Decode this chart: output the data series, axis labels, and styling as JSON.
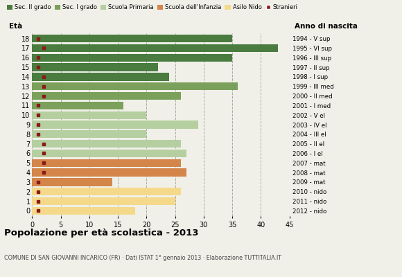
{
  "ages": [
    18,
    17,
    16,
    15,
    14,
    13,
    12,
    11,
    10,
    9,
    8,
    7,
    6,
    5,
    4,
    3,
    2,
    1,
    0
  ],
  "values": [
    35,
    43,
    35,
    22,
    24,
    36,
    26,
    16,
    20,
    29,
    20,
    26,
    27,
    26,
    27,
    14,
    26,
    25,
    18
  ],
  "anno_nascita": [
    "1994 - V sup",
    "1995 - VI sup",
    "1996 - III sup",
    "1997 - II sup",
    "1998 - I sup",
    "1999 - III med",
    "2000 - II med",
    "2001 - I med",
    "2002 - V el",
    "2003 - IV el",
    "2004 - III el",
    "2005 - II el",
    "2006 - I el",
    "2007 - mat",
    "2008 - mat",
    "2009 - mat",
    "2010 - nido",
    "2011 - nido",
    "2012 - nido"
  ],
  "bar_colors": [
    "#4a7c3f",
    "#4a7c3f",
    "#4a7c3f",
    "#4a7c3f",
    "#4a7c3f",
    "#7ba05b",
    "#7ba05b",
    "#7ba05b",
    "#b5cfa0",
    "#b5cfa0",
    "#b5cfa0",
    "#b5cfa0",
    "#b5cfa0",
    "#d4854a",
    "#d4854a",
    "#d4854a",
    "#f5d98b",
    "#f5d98b",
    "#f5d98b"
  ],
  "stranieri_x": [
    1,
    2,
    1,
    1,
    2,
    2,
    2,
    1,
    1,
    1,
    1,
    2,
    2,
    2,
    2,
    1,
    1,
    1,
    1
  ],
  "stranieri_color": "#8b1a1a",
  "legend_labels": [
    "Sec. II grado",
    "Sec. I grado",
    "Scuola Primaria",
    "Scuola dell'Infanzia",
    "Asilo Nido",
    "Stranieri"
  ],
  "legend_colors": [
    "#4a7c3f",
    "#7ba05b",
    "#b5cfa0",
    "#d4854a",
    "#f5d98b",
    "#8b1a1a"
  ],
  "title": "Popolazione per età scolastica - 2013",
  "subtitle": "COMUNE DI SAN GIOVANNI INCARICO (FR) · Dati ISTAT 1° gennaio 2013 · Elaborazione TUTTITALIA.IT",
  "xlabel_eta": "Età",
  "xlabel_anno": "Anno di nascita",
  "xlim": [
    0,
    45
  ],
  "xticks": [
    0,
    5,
    10,
    15,
    20,
    25,
    30,
    35,
    40,
    45
  ],
  "bg_color": "#f0f0e8"
}
